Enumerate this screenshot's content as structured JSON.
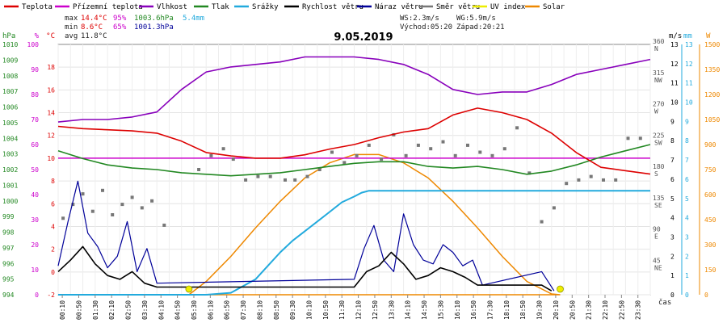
{
  "chart_data": {
    "type": "line",
    "title": "9.05.2019",
    "x_ticks": [
      "00:10",
      "00:50",
      "01:30",
      "02:10",
      "02:50",
      "03:30",
      "04:10",
      "04:50",
      "05:30",
      "06:10",
      "06:50",
      "07:30",
      "08:10",
      "08:50",
      "09:30",
      "10:10",
      "10:50",
      "11:30",
      "12:10",
      "12:50",
      "13:30",
      "14:10",
      "14:50",
      "15:30",
      "16:10",
      "16:50",
      "17:30",
      "18:10",
      "18:50",
      "19:30",
      "20:10",
      "20:50",
      "21:30",
      "22:10",
      "22:50",
      "23:30"
    ],
    "x_label": "čas",
    "legend": [
      {
        "name": "Teplota",
        "color": "#dd0000"
      },
      {
        "name": "Přízemní teplota",
        "color": "#cc00cc"
      },
      {
        "name": "Vlhkost",
        "color": "#8800bb"
      },
      {
        "name": "Tlak",
        "color": "#228822"
      },
      {
        "name": "Srážky",
        "color": "#22aadd"
      },
      {
        "name": "Rychlost větru",
        "color": "#000000"
      },
      {
        "name": "Náraz větru",
        "color": "#000099"
      },
      {
        "name": "Směr větru",
        "color": "#777777"
      },
      {
        "name": "UV index",
        "color": "#eeee00"
      },
      {
        "name": "Solar",
        "color": "#ee8800"
      }
    ],
    "stats": {
      "max_label": "max",
      "min_label": "min",
      "avg_label": "avg",
      "max_temp": "14.4°C",
      "max_hum": "95%",
      "max_press": "1003.6hPa",
      "max_rain": "5.4mm",
      "min_temp": "8.6°C",
      "min_hum": "65%",
      "min_press": "1001.3hPa",
      "avg_temp": "11.8°C",
      "ws": "WS:2.3m/s",
      "wg": "WG:5.9m/s",
      "sunrise": "Východ:05:20",
      "sunset": "Západ:20:21"
    },
    "axes": {
      "pressure": {
        "unit": "hPa",
        "color": "#228822",
        "ticks": [
          "994",
          "995",
          "996",
          "997",
          "998",
          "999",
          "1000",
          "1001",
          "1002",
          "1003",
          "1004",
          "1005",
          "1006",
          "1007",
          "1008",
          "1009",
          "1010"
        ]
      },
      "humidity": {
        "unit": "%",
        "color": "#cc00cc",
        "ticks": [
          "0",
          "10",
          "20",
          "30",
          "40",
          "50",
          "60",
          "70",
          "80",
          "90",
          "100"
        ]
      },
      "temperature": {
        "unit": "°C",
        "color": "#dd0000",
        "ticks": [
          "-2",
          "0",
          "2",
          "4",
          "6",
          "8",
          "10",
          "12",
          "14",
          "16",
          "18"
        ],
        "range": [
          -2,
          20
        ]
      },
      "direction": {
        "color": "#555555",
        "ticks": [
          {
            "deg": "45",
            "dir": "NE"
          },
          {
            "deg": "90",
            "dir": "E"
          },
          {
            "deg": "135",
            "dir": "SE"
          },
          {
            "deg": "180",
            "dir": "S"
          },
          {
            "deg": "225",
            "dir": "SW"
          },
          {
            "deg": "270",
            "dir": "W"
          },
          {
            "deg": "315",
            "dir": "NW"
          },
          {
            "deg": "360",
            "dir": "N"
          }
        ]
      },
      "wind": {
        "unit": "m/s",
        "color": "#000000",
        "ticks": [
          "0",
          "1",
          "2",
          "3",
          "4",
          "5",
          "6",
          "7",
          "8",
          "9",
          "10",
          "11",
          "12",
          "13"
        ]
      },
      "rain": {
        "unit": "mm",
        "color": "#22aadd",
        "ticks": [
          "0",
          "1",
          "2",
          "3",
          "4",
          "5",
          "6",
          "7",
          "8",
          "9",
          "10",
          "11",
          "12",
          "13"
        ]
      },
      "solar": {
        "unit": "W",
        "color": "#ee8800",
        "ticks": [
          "0",
          "150",
          "300",
          "450",
          "600",
          "750",
          "900",
          "1050",
          "1200",
          "1350",
          "1500"
        ]
      }
    },
    "reference_lines": [
      {
        "series": "Přízemní teplota",
        "value": 10
      }
    ],
    "series": [
      {
        "name": "Teplota",
        "axis": "temperature",
        "x": [
          0,
          1,
          2,
          3,
          4,
          5,
          6,
          7,
          8,
          9,
          10,
          11,
          12,
          13,
          14,
          15,
          16,
          17,
          18,
          19,
          20,
          21,
          22,
          23,
          24
        ],
        "values": [
          12.8,
          12.6,
          12.5,
          12.4,
          12.2,
          11.5,
          10.5,
          10.2,
          10.0,
          10.0,
          10.3,
          10.8,
          11.2,
          11.8,
          12.3,
          12.6,
          13.8,
          14.4,
          14.0,
          13.4,
          12.2,
          10.5,
          9.2,
          8.9,
          8.6
        ]
      },
      {
        "name": "Vlhkost",
        "axis": "humidity",
        "x": [
          0,
          1,
          2,
          3,
          4,
          5,
          6,
          7,
          8,
          9,
          10,
          11,
          12,
          13,
          14,
          15,
          16,
          17,
          18,
          19,
          20,
          21,
          22,
          23,
          24
        ],
        "values": [
          69,
          70,
          70,
          71,
          73,
          82,
          89,
          91,
          92,
          93,
          95,
          95,
          95,
          94,
          92,
          88,
          82,
          80,
          81,
          81,
          84,
          88,
          90,
          92,
          94
        ]
      },
      {
        "name": "Tlak",
        "axis": "pressure",
        "x": [
          0,
          1,
          2,
          3,
          4,
          5,
          6,
          7,
          8,
          9,
          10,
          11,
          12,
          13,
          14,
          15,
          16,
          17,
          18,
          19,
          20,
          21,
          22,
          23,
          24
        ],
        "values": [
          1003.2,
          1002.7,
          1002.3,
          1002.1,
          1002.0,
          1001.8,
          1001.7,
          1001.6,
          1001.7,
          1001.8,
          1002.0,
          1002.2,
          1002.4,
          1002.5,
          1002.5,
          1002.2,
          1002.1,
          1002.2,
          1002.0,
          1001.7,
          1001.9,
          1002.3,
          1002.8,
          1003.2,
          1003.6
        ]
      },
      {
        "name": "Srážky",
        "axis": "rain",
        "x": [
          0,
          5.3,
          6,
          7,
          8,
          8.5,
          9,
          9.5,
          10,
          10.5,
          11,
          11.5,
          12,
          12.3,
          12.6,
          13,
          14,
          24
        ],
        "values": [
          0,
          0,
          0,
          0.1,
          0.8,
          1.5,
          2.2,
          2.8,
          3.3,
          3.8,
          4.3,
          4.8,
          5.1,
          5.3,
          5.4,
          5.4,
          5.4,
          5.4
        ]
      },
      {
        "name": "Solar",
        "axis": "solar",
        "x": [
          5.3,
          6,
          7,
          8,
          9,
          10,
          11,
          12,
          13,
          14,
          15,
          16,
          17,
          18,
          19,
          20,
          20.35
        ],
        "values": [
          0,
          80,
          230,
          400,
          560,
          700,
          790,
          840,
          840,
          790,
          700,
          560,
          400,
          230,
          80,
          5,
          0
        ]
      },
      {
        "name": "Rychlost větru",
        "axis": "wind",
        "x": [
          0,
          0.5,
          1,
          1.5,
          2,
          2.5,
          3,
          3.5,
          4,
          12,
          12.5,
          13,
          13.5,
          14,
          14.5,
          15,
          15.5,
          16,
          16.5,
          17,
          19.6,
          20
        ],
        "values": [
          1.2,
          1.8,
          2.5,
          1.6,
          1.0,
          0.8,
          1.2,
          0.6,
          0.4,
          0.4,
          1.2,
          1.5,
          2.2,
          1.6,
          0.8,
          1.0,
          1.4,
          1.2,
          0.9,
          0.5,
          0.5,
          0.2
        ]
      },
      {
        "name": "Náraz větru",
        "axis": "wind",
        "x": [
          0,
          0.4,
          0.8,
          1.2,
          1.6,
          2,
          2.4,
          2.8,
          3.2,
          3.6,
          4,
          12,
          12.4,
          12.8,
          13.2,
          13.6,
          14,
          14.4,
          14.8,
          15.2,
          15.6,
          16,
          16.4,
          16.8,
          17.2,
          19.6,
          19.9,
          20.1
        ],
        "values": [
          1.5,
          3.8,
          5.9,
          3.2,
          2.5,
          1.4,
          2.0,
          3.8,
          1.2,
          2.4,
          0.6,
          0.8,
          2.4,
          3.6,
          1.8,
          1.2,
          4.2,
          2.6,
          1.8,
          1.6,
          2.6,
          2.2,
          1.5,
          1.8,
          0.5,
          1.2,
          0.6,
          0.2
        ]
      },
      {
        "name": "Směr větru",
        "axis": "direction",
        "x": [
          0.2,
          0.6,
          1.0,
          1.4,
          1.8,
          2.2,
          2.6,
          3.0,
          3.4,
          3.8,
          4.3,
          5.7,
          6.2,
          6.7,
          7.1,
          7.6,
          8.1,
          8.6,
          9.2,
          9.6,
          10.1,
          10.6,
          11.1,
          11.6,
          12.1,
          12.6,
          13.1,
          13.6,
          14.1,
          14.6,
          15.1,
          15.6,
          16.1,
          16.6,
          17.1,
          17.6,
          18.1,
          18.6,
          19.1,
          19.6,
          20.1,
          20.6,
          21.1,
          21.6,
          22.1,
          22.6,
          23.1,
          23.6
        ],
        "values": [
          110,
          130,
          145,
          120,
          150,
          115,
          130,
          140,
          125,
          135,
          100,
          180,
          200,
          210,
          195,
          165,
          170,
          170,
          165,
          165,
          170,
          180,
          205,
          190,
          200,
          215,
          195,
          230,
          200,
          215,
          210,
          220,
          200,
          215,
          205,
          200,
          210,
          240,
          175,
          105,
          125,
          160,
          165,
          170,
          165,
          165,
          225,
          225
        ]
      },
      {
        "name": "UV index",
        "axis": "wind",
        "x": [
          5.3,
          20.35
        ],
        "values": [
          0,
          0
        ]
      }
    ]
  }
}
